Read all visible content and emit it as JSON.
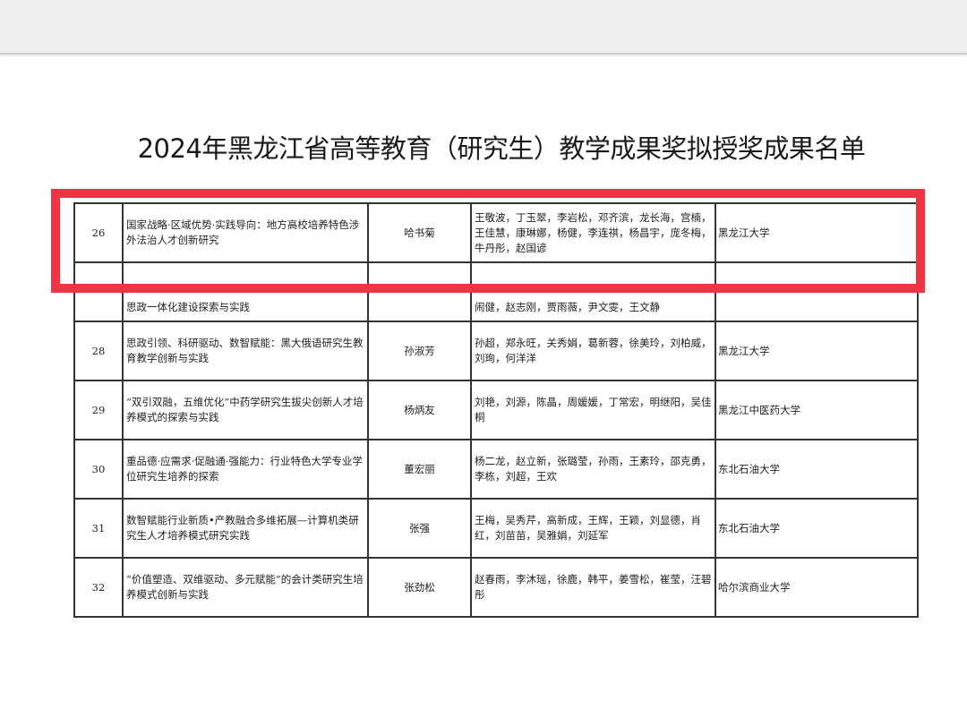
{
  "document": {
    "title": "2024年黑龙江省高等教育（研究生）教学成果奖拟授奖成果名单",
    "highlight_color": "#ef3446",
    "rows": [
      {
        "num": "26",
        "title": "国家战略·区域优势·实践导向：地方高校培养特色涉外法治人才创新研究",
        "lead": "哈书菊",
        "members": "王敬波，丁玉翠，李岩松，邓齐滨，龙长海，宫楠，王佳慧，康琳娜，杨健，李连祺，杨昌宇，庞冬梅，牛丹彤，赵国谚",
        "unit": "黑龙江大学"
      },
      {
        "num": "",
        "title": "思政一体化建设探索与实践",
        "lead": "",
        "members": "闹健，赵志刚，贾雨薇，尹文雯，王文静",
        "unit": ""
      },
      {
        "num": "28",
        "title": "思政引领、科研驱动、数智赋能：黑大俄语研究生教育教学创新与实践",
        "lead": "孙淑芳",
        "members": "孙超，郑永旺，关秀娟，葛新蓉，徐美玲，刘柏威，刘珣，何洋洋",
        "unit": "黑龙江大学"
      },
      {
        "num": "29",
        "title": "“双引双融，五维优化”中药学研究生拔尖创新人才培养模式的探索与实践",
        "lead": "杨炳友",
        "members": "刘艳，刘源，陈晶，周媛媛，丁常宏，明继阳，吴佳桐",
        "unit": "黑龙江中医药大学"
      },
      {
        "num": "30",
        "title": "重品德·应需求·促融通·强能力：行业特色大学专业学位研究生培养的探索",
        "lead": "董宏丽",
        "members": "杨二龙，赵立新，张璐莹，孙雨，王素玲，邵克勇，李栋，刘超，王欢",
        "unit": "东北石油大学"
      },
      {
        "num": "31",
        "title": "数智赋能行业新质•产教融合多维拓展—计算机类研究生人才培养模式研究实践",
        "lead": "张强",
        "members": "王梅，吴秀芹，高新成，王辉，王颖，刘显德，肖红，刘苗苗，吴雅娟，刘延军",
        "unit": "东北石油大学"
      },
      {
        "num": "32",
        "title": "“价值塑造、双维驱动、多元赋能”的会计类研究生培养模式创新与实践",
        "lead": "张劲松",
        "members": "赵春雨，李沐瑶，徐鹿，韩平，姜雪松，崔莹，汪碧彤",
        "unit": "哈尔滨商业大学"
      }
    ]
  }
}
